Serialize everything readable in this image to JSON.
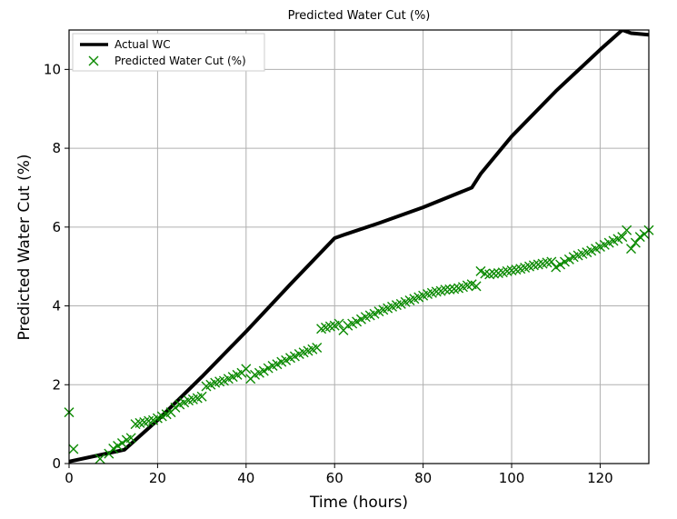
{
  "chart_data": {
    "type": "line",
    "title": "Predicted Water Cut (%)",
    "xlabel": "Time (hours)",
    "ylabel": "Predicted Water Cut (%)",
    "xlim": [
      0,
      131
    ],
    "ylim": [
      0,
      11
    ],
    "xticks": [
      0,
      20,
      40,
      60,
      80,
      100,
      120
    ],
    "yticks": [
      0,
      2,
      4,
      6,
      8,
      10
    ],
    "xtick_labels": [
      "0",
      "20",
      "40",
      "60",
      "80",
      "100",
      "120"
    ],
    "ytick_labels": [
      "0",
      "2",
      "4",
      "6",
      "8",
      "10"
    ],
    "grid": true,
    "legend": {
      "location": "upper-left",
      "entries": [
        "Actual WC",
        "Predicted Water Cut (%)"
      ]
    },
    "series": [
      {
        "name": "Actual WC",
        "style": "line",
        "color": "#000000",
        "x": [
          0,
          12.5,
          20,
          30,
          40,
          50,
          60,
          62,
          70,
          80,
          91,
          93,
          100,
          110,
          120,
          125,
          127,
          131
        ],
        "y": [
          0.05,
          0.35,
          1.1,
          2.2,
          3.35,
          4.55,
          5.72,
          5.8,
          6.1,
          6.5,
          7.0,
          7.35,
          8.3,
          9.45,
          10.5,
          11.0,
          10.92,
          10.88
        ]
      },
      {
        "name": "Predicted Water Cut (%)",
        "style": "scatter",
        "marker": "x",
        "color": "#0a8a00",
        "x": [
          0,
          1,
          7,
          9,
          10,
          11,
          12,
          13,
          14,
          15,
          16,
          17,
          18,
          19,
          20,
          21,
          22,
          23,
          24,
          25,
          26,
          27,
          28,
          29,
          30,
          31,
          32,
          33,
          34,
          35,
          36,
          37,
          38,
          39,
          40,
          41,
          42,
          43,
          44,
          45,
          46,
          47,
          48,
          49,
          50,
          51,
          52,
          53,
          54,
          55,
          56,
          57,
          58,
          59,
          60,
          61,
          62,
          63,
          64,
          65,
          66,
          67,
          68,
          69,
          70,
          71,
          72,
          73,
          74,
          75,
          76,
          77,
          78,
          79,
          80,
          81,
          82,
          83,
          84,
          85,
          86,
          87,
          88,
          89,
          90,
          91,
          92,
          93,
          94,
          95,
          96,
          97,
          98,
          99,
          100,
          101,
          102,
          103,
          104,
          105,
          106,
          107,
          108,
          109,
          110,
          111,
          112,
          113,
          114,
          115,
          116,
          117,
          118,
          119,
          120,
          121,
          122,
          123,
          124,
          125,
          126,
          127,
          128,
          129,
          130,
          131
        ],
        "y": [
          1.3,
          0.37,
          0.12,
          0.25,
          0.38,
          0.45,
          0.52,
          0.6,
          0.65,
          1.0,
          1.03,
          1.05,
          1.08,
          1.1,
          1.15,
          1.2,
          1.25,
          1.3,
          1.42,
          1.5,
          1.55,
          1.6,
          1.63,
          1.66,
          1.7,
          1.96,
          2.0,
          2.05,
          2.08,
          2.1,
          2.15,
          2.2,
          2.25,
          2.3,
          2.4,
          2.15,
          2.25,
          2.3,
          2.35,
          2.42,
          2.48,
          2.52,
          2.58,
          2.62,
          2.68,
          2.72,
          2.78,
          2.82,
          2.86,
          2.9,
          2.94,
          3.42,
          3.45,
          3.48,
          3.5,
          3.55,
          3.38,
          3.5,
          3.55,
          3.6,
          3.66,
          3.72,
          3.76,
          3.8,
          3.86,
          3.9,
          3.94,
          3.98,
          4.02,
          4.05,
          4.1,
          4.14,
          4.18,
          4.22,
          4.26,
          4.3,
          4.33,
          4.36,
          4.38,
          4.41,
          4.42,
          4.43,
          4.45,
          4.48,
          4.52,
          4.55,
          4.5,
          4.88,
          4.82,
          4.8,
          4.82,
          4.83,
          4.85,
          4.88,
          4.9,
          4.92,
          4.94,
          4.97,
          5.0,
          5.03,
          5.05,
          5.07,
          5.1,
          5.12,
          4.98,
          5.05,
          5.12,
          5.18,
          5.24,
          5.28,
          5.32,
          5.36,
          5.4,
          5.45,
          5.5,
          5.55,
          5.6,
          5.65,
          5.7,
          5.75,
          5.92,
          5.45,
          5.6,
          5.75,
          5.82,
          5.92
        ]
      }
    ]
  }
}
